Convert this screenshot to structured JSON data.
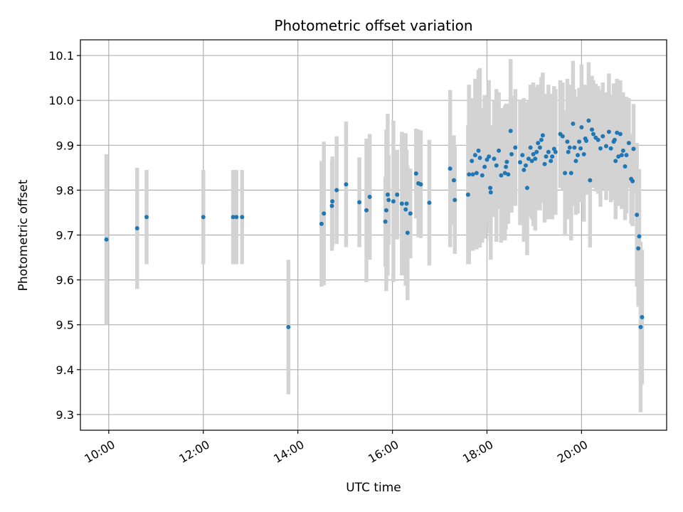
{
  "chart_data": {
    "type": "scatter",
    "title": "Photometric offset variation",
    "xlabel": "UTC time",
    "ylabel": "Photometric offset",
    "xlim": [
      9.4,
      21.8
    ],
    "ylim": [
      9.265,
      10.135
    ],
    "grid": true,
    "x_ticks": [
      {
        "value": 10,
        "label": "10:00"
      },
      {
        "value": 12,
        "label": "12:00"
      },
      {
        "value": 14,
        "label": "14:00"
      },
      {
        "value": 16,
        "label": "16:00"
      },
      {
        "value": 18,
        "label": "18:00"
      },
      {
        "value": 20,
        "label": "20:00"
      }
    ],
    "y_ticks": [
      {
        "value": 9.3,
        "label": "9.3"
      },
      {
        "value": 9.4,
        "label": "9.4"
      },
      {
        "value": 9.5,
        "label": "9.5"
      },
      {
        "value": 9.6,
        "label": "9.6"
      },
      {
        "value": 9.7,
        "label": "9.7"
      },
      {
        "value": 9.8,
        "label": "9.8"
      },
      {
        "value": 9.9,
        "label": "9.9"
      },
      {
        "value": 10.0,
        "label": "10.0"
      },
      {
        "value": 10.1,
        "label": "10.1"
      }
    ],
    "marker_color": "#1f77b4",
    "errorbar_color": "#d3d3d3",
    "points": [
      [
        9.95,
        9.69,
        0.19
      ],
      [
        10.6,
        9.715,
        0.135
      ],
      [
        10.8,
        9.74,
        0.105
      ],
      [
        12.0,
        9.74,
        0.105
      ],
      [
        12.63,
        9.74,
        0.105
      ],
      [
        12.7,
        9.74,
        0.105
      ],
      [
        12.82,
        9.74,
        0.105
      ],
      [
        13.8,
        9.495,
        0.15
      ],
      [
        14.5,
        9.725,
        0.14
      ],
      [
        14.55,
        9.748,
        0.16
      ],
      [
        14.72,
        9.765,
        0.1
      ],
      [
        14.73,
        9.775,
        0.1
      ],
      [
        14.82,
        9.8,
        0.12
      ],
      [
        15.02,
        9.813,
        0.14
      ],
      [
        15.3,
        9.773,
        0.1
      ],
      [
        15.45,
        9.755,
        0.16
      ],
      [
        15.52,
        9.785,
        0.14
      ],
      [
        15.85,
        9.73,
        0.1
      ],
      [
        15.87,
        9.755,
        0.18
      ],
      [
        15.9,
        9.79,
        0.18
      ],
      [
        15.92,
        9.778,
        0.1
      ],
      [
        16.02,
        9.775,
        0.18
      ],
      [
        16.1,
        9.79,
        0.1
      ],
      [
        16.2,
        9.77,
        0.16
      ],
      [
        16.28,
        9.757,
        0.17
      ],
      [
        16.3,
        9.77,
        0.12
      ],
      [
        16.32,
        9.705,
        0.15
      ],
      [
        16.38,
        9.748,
        0.1
      ],
      [
        16.5,
        9.837,
        0.1
      ],
      [
        16.55,
        9.815,
        0.12
      ],
      [
        16.6,
        9.813,
        0.12
      ],
      [
        16.78,
        9.772,
        0.14
      ],
      [
        17.22,
        9.848,
        0.175
      ],
      [
        17.3,
        9.822,
        0.1
      ],
      [
        17.32,
        9.778,
        0.12
      ],
      [
        17.6,
        9.79,
        0.155
      ],
      [
        17.62,
        9.835,
        0.2
      ],
      [
        17.68,
        9.865,
        0.14
      ],
      [
        17.7,
        9.835,
        0.17
      ],
      [
        17.75,
        9.878,
        0.17
      ],
      [
        17.78,
        9.838,
        0.17
      ],
      [
        17.82,
        9.888,
        0.18
      ],
      [
        17.85,
        9.872,
        0.2
      ],
      [
        17.9,
        9.833,
        0.15
      ],
      [
        17.95,
        9.852,
        0.16
      ],
      [
        18.0,
        9.868,
        0.14
      ],
      [
        18.04,
        9.875,
        0.17
      ],
      [
        18.07,
        9.805,
        0.12
      ],
      [
        18.08,
        9.795,
        0.15
      ],
      [
        18.15,
        9.87,
        0.13
      ],
      [
        18.2,
        9.855,
        0.17
      ],
      [
        18.25,
        9.888,
        0.13
      ],
      [
        18.3,
        9.833,
        0.15
      ],
      [
        18.38,
        9.838,
        0.15
      ],
      [
        18.4,
        9.852,
        0.14
      ],
      [
        18.42,
        9.863,
        0.13
      ],
      [
        18.45,
        9.835,
        0.11
      ],
      [
        18.5,
        9.932,
        0.16
      ],
      [
        18.52,
        9.88,
        0.13
      ],
      [
        18.6,
        9.895,
        0.13
      ],
      [
        18.7,
        9.862,
        0.14
      ],
      [
        18.75,
        9.878,
        0.12
      ],
      [
        18.78,
        9.845,
        0.16
      ],
      [
        18.82,
        9.855,
        0.14
      ],
      [
        18.85,
        9.805,
        0.15
      ],
      [
        18.88,
        9.87,
        0.13
      ],
      [
        18.92,
        9.895,
        0.14
      ],
      [
        18.95,
        9.865,
        0.13
      ],
      [
        18.98,
        9.88,
        0.16
      ],
      [
        19.02,
        9.87,
        0.16
      ],
      [
        19.05,
        9.885,
        0.13
      ],
      [
        19.08,
        9.905,
        0.13
      ],
      [
        19.12,
        9.895,
        0.14
      ],
      [
        19.15,
        9.912,
        0.14
      ],
      [
        19.18,
        9.922,
        0.14
      ],
      [
        19.22,
        9.858,
        0.13
      ],
      [
        19.25,
        9.875,
        0.14
      ],
      [
        19.3,
        9.885,
        0.15
      ],
      [
        19.35,
        9.865,
        0.12
      ],
      [
        19.38,
        9.875,
        0.14
      ],
      [
        19.42,
        9.892,
        0.14
      ],
      [
        19.45,
        9.885,
        0.14
      ],
      [
        19.55,
        9.925,
        0.12
      ],
      [
        19.6,
        9.92,
        0.12
      ],
      [
        19.65,
        9.838,
        0.14
      ],
      [
        19.7,
        9.908,
        0.14
      ],
      [
        19.72,
        9.885,
        0.15
      ],
      [
        19.75,
        9.895,
        0.14
      ],
      [
        19.78,
        9.838,
        0.15
      ],
      [
        19.82,
        9.948,
        0.14
      ],
      [
        19.85,
        9.895,
        0.13
      ],
      [
        19.88,
        9.865,
        0.12
      ],
      [
        19.92,
        9.878,
        0.13
      ],
      [
        19.95,
        9.908,
        0.12
      ],
      [
        19.98,
        9.893,
        0.12
      ],
      [
        20.0,
        9.94,
        0.14
      ],
      [
        20.05,
        9.88,
        0.15
      ],
      [
        20.08,
        9.915,
        0.12
      ],
      [
        20.1,
        9.91,
        0.12
      ],
      [
        20.15,
        9.955,
        0.13
      ],
      [
        20.18,
        9.822,
        0.15
      ],
      [
        20.22,
        9.935,
        0.12
      ],
      [
        20.25,
        9.925,
        0.12
      ],
      [
        20.3,
        9.917,
        0.12
      ],
      [
        20.35,
        9.912,
        0.12
      ],
      [
        20.4,
        9.893,
        0.13
      ],
      [
        20.45,
        9.92,
        0.12
      ],
      [
        20.52,
        9.898,
        0.12
      ],
      [
        20.58,
        9.93,
        0.13
      ],
      [
        20.62,
        9.893,
        0.12
      ],
      [
        20.68,
        9.908,
        0.13
      ],
      [
        20.7,
        9.912,
        0.12
      ],
      [
        20.72,
        9.865,
        0.13
      ],
      [
        20.75,
        9.928,
        0.12
      ],
      [
        20.78,
        9.875,
        0.11
      ],
      [
        20.82,
        9.925,
        0.12
      ],
      [
        20.85,
        9.878,
        0.12
      ],
      [
        20.88,
        9.888,
        0.13
      ],
      [
        20.92,
        9.853,
        0.12
      ],
      [
        20.95,
        9.878,
        0.13
      ],
      [
        21.0,
        9.905,
        0.1
      ],
      [
        21.05,
        9.825,
        0.1
      ],
      [
        21.08,
        9.82,
        0.1
      ],
      [
        21.1,
        9.892,
        0.1
      ],
      [
        21.17,
        9.745,
        0.16
      ],
      [
        21.2,
        9.67,
        0.13
      ],
      [
        21.22,
        9.697,
        0.15
      ],
      [
        21.25,
        9.495,
        0.19
      ],
      [
        21.28,
        9.517,
        0.15
      ]
    ]
  }
}
